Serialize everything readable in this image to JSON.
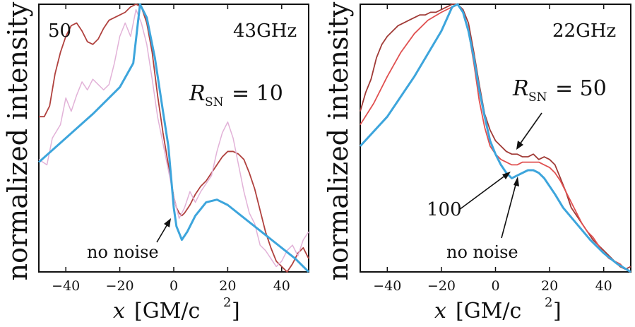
{
  "chart_data": [
    {
      "type": "line",
      "panel": "left",
      "tag": "43GHz",
      "ylabel": "normalized intensity",
      "xlabel": "x [GM/c²]",
      "xlabel_var": "x",
      "xlabel_unit": "[GM/c",
      "xlabel_exp": "2",
      "xlabel_close": "]",
      "xlim": [
        -50,
        50
      ],
      "ylim": [
        0,
        1
      ],
      "xticks": [
        -40,
        -20,
        0,
        20,
        40
      ],
      "xtick_labels": [
        "−40",
        "−20",
        "0",
        "20",
        "40"
      ],
      "yticks": [],
      "series": [
        {
          "name": "no noise",
          "color": "#3da5dc",
          "width": 3,
          "x": [
            -50,
            -40,
            -30,
            -20,
            -15,
            -12.5,
            -10,
            -7,
            -4,
            -2,
            0,
            1,
            3,
            5,
            8,
            12,
            16,
            20,
            25,
            30,
            35,
            40,
            45,
            50
          ],
          "y": [
            0.41,
            0.5,
            0.59,
            0.69,
            0.78,
            1.0,
            0.95,
            0.8,
            0.6,
            0.47,
            0.24,
            0.17,
            0.12,
            0.15,
            0.21,
            0.26,
            0.27,
            0.25,
            0.21,
            0.17,
            0.13,
            0.09,
            0.05,
            0.0
          ]
        },
        {
          "name": "R_SN = 10",
          "color": "#e2b2d8",
          "width": 1.5,
          "x": [
            -50,
            -47,
            -45,
            -42,
            -40,
            -38,
            -36,
            -34,
            -32,
            -30,
            -28,
            -26,
            -24,
            -22,
            -20,
            -18,
            -16,
            -14,
            -12,
            -10,
            -8,
            -6,
            -4,
            -2,
            0,
            2,
            4,
            6,
            8,
            10,
            12,
            14,
            16,
            18,
            20,
            22,
            24,
            26,
            28,
            30,
            32,
            34,
            36,
            38,
            40,
            42,
            44,
            46,
            48,
            50
          ],
          "y": [
            0.42,
            0.4,
            0.5,
            0.55,
            0.65,
            0.6,
            0.66,
            0.71,
            0.68,
            0.72,
            0.7,
            0.68,
            0.7,
            0.78,
            0.88,
            0.93,
            0.88,
            0.98,
            0.93,
            0.85,
            0.72,
            0.58,
            0.48,
            0.38,
            0.28,
            0.2,
            0.24,
            0.3,
            0.26,
            0.3,
            0.33,
            0.36,
            0.45,
            0.52,
            0.56,
            0.5,
            0.4,
            0.3,
            0.22,
            0.18,
            0.1,
            0.08,
            0.05,
            0.02,
            0.04,
            0.08,
            0.1,
            0.06,
            0.12,
            0.15
          ]
        },
        {
          "name": "R_SN = 50",
          "color": "#b0413e",
          "width": 1.8,
          "x": [
            -50,
            -48,
            -46,
            -44,
            -42,
            -40,
            -38,
            -36,
            -34,
            -32,
            -30,
            -28,
            -26,
            -24,
            -22,
            -20,
            -18,
            -16,
            -14,
            -12,
            -10,
            -8,
            -6,
            -4,
            -2,
            0,
            1,
            2,
            3,
            4,
            6,
            8,
            10,
            12,
            14,
            16,
            18,
            20,
            22,
            24,
            26,
            28,
            30,
            32,
            34,
            36,
            38,
            40,
            42,
            44,
            46,
            48,
            50
          ],
          "y": [
            0.58,
            0.58,
            0.62,
            0.74,
            0.82,
            0.88,
            0.92,
            0.93,
            0.9,
            0.86,
            0.85,
            0.87,
            0.91,
            0.94,
            0.95,
            0.96,
            0.97,
            0.99,
            1.0,
            0.99,
            0.93,
            0.82,
            0.66,
            0.52,
            0.4,
            0.28,
            0.24,
            0.22,
            0.21,
            0.22,
            0.25,
            0.29,
            0.32,
            0.34,
            0.37,
            0.4,
            0.43,
            0.45,
            0.45,
            0.44,
            0.42,
            0.37,
            0.31,
            0.23,
            0.15,
            0.09,
            0.04,
            0.02,
            0.0,
            0.03,
            0.07,
            0.09,
            0.05
          ]
        }
      ],
      "annotations": {
        "top_left": "50",
        "rsn_lhs": "R",
        "rsn_sub": "SN",
        "rsn_rhs": "= 10",
        "no_noise": "no noise"
      }
    },
    {
      "type": "line",
      "panel": "right",
      "tag": "22GHz",
      "ylabel": "normalized intensity",
      "xlabel": "x [GM/c²]",
      "xlabel_var": "x",
      "xlabel_unit": "[GM/c",
      "xlabel_exp": "2",
      "xlabel_close": "]",
      "xlim": [
        -50,
        50
      ],
      "ylim": [
        0,
        1
      ],
      "xticks": [
        -40,
        -20,
        0,
        20,
        40
      ],
      "xtick_labels": [
        "−40",
        "−20",
        "0",
        "20",
        "40"
      ],
      "yticks": [],
      "series": [
        {
          "name": "no noise",
          "color": "#3da5dc",
          "width": 3,
          "x": [
            -50,
            -40,
            -30,
            -20,
            -16,
            -14,
            -12,
            -10,
            -8,
            -6,
            -4,
            -2,
            0,
            2,
            4,
            6,
            8,
            10,
            12,
            14,
            16,
            18,
            20,
            22,
            25,
            30,
            35,
            40,
            45,
            50
          ],
          "y": [
            0.47,
            0.58,
            0.73,
            0.9,
            0.99,
            1.0,
            0.97,
            0.9,
            0.8,
            0.68,
            0.58,
            0.49,
            0.44,
            0.4,
            0.37,
            0.35,
            0.36,
            0.37,
            0.38,
            0.38,
            0.37,
            0.35,
            0.32,
            0.29,
            0.24,
            0.18,
            0.12,
            0.07,
            0.03,
            0.0
          ]
        },
        {
          "name": "R_SN = 100",
          "color": "#e05050",
          "width": 1.8,
          "x": [
            -50,
            -45,
            -40,
            -35,
            -30,
            -25,
            -20,
            -16,
            -14,
            -12,
            -10,
            -8,
            -6,
            -4,
            -2,
            0,
            2,
            4,
            6,
            8,
            10,
            12,
            14,
            16,
            18,
            20,
            22,
            24,
            26,
            28,
            30,
            32,
            34,
            36,
            38,
            40,
            42,
            44,
            46,
            48,
            50
          ],
          "y": [
            0.55,
            0.63,
            0.73,
            0.82,
            0.89,
            0.94,
            0.97,
            0.99,
            1.0,
            0.97,
            0.9,
            0.78,
            0.64,
            0.54,
            0.47,
            0.44,
            0.42,
            0.41,
            0.4,
            0.4,
            0.41,
            0.41,
            0.41,
            0.41,
            0.4,
            0.39,
            0.37,
            0.34,
            0.3,
            0.26,
            0.22,
            0.18,
            0.15,
            0.13,
            0.1,
            0.07,
            0.05,
            0.04,
            0.03,
            0.01,
            0.0
          ]
        },
        {
          "name": "R_SN = 50",
          "color": "#a03a36",
          "width": 1.8,
          "x": [
            -50,
            -48,
            -46,
            -44,
            -42,
            -40,
            -38,
            -36,
            -34,
            -32,
            -30,
            -28,
            -26,
            -24,
            -22,
            -20,
            -18,
            -16,
            -14,
            -12,
            -10,
            -8,
            -6,
            -4,
            -2,
            0,
            2,
            4,
            6,
            8,
            10,
            12,
            14,
            16,
            18,
            20,
            22,
            24,
            26,
            28,
            30,
            32,
            34,
            36,
            38,
            40,
            42,
            44,
            46,
            48,
            50
          ],
          "y": [
            0.6,
            0.67,
            0.72,
            0.8,
            0.85,
            0.88,
            0.9,
            0.92,
            0.93,
            0.94,
            0.95,
            0.96,
            0.96,
            0.97,
            0.97,
            0.98,
            0.99,
            1.0,
            1.0,
            0.98,
            0.93,
            0.82,
            0.7,
            0.59,
            0.53,
            0.49,
            0.47,
            0.45,
            0.44,
            0.44,
            0.43,
            0.43,
            0.44,
            0.42,
            0.43,
            0.42,
            0.4,
            0.35,
            0.3,
            0.24,
            0.21,
            0.18,
            0.15,
            0.12,
            0.1,
            0.08,
            0.06,
            0.04,
            0.02,
            0.01,
            0.02
          ]
        }
      ],
      "annotations": {
        "rsn_lhs": "R",
        "rsn_sub": "SN",
        "rsn_rhs": "= 50",
        "label_100": "100",
        "no_noise": "no noise"
      }
    }
  ]
}
